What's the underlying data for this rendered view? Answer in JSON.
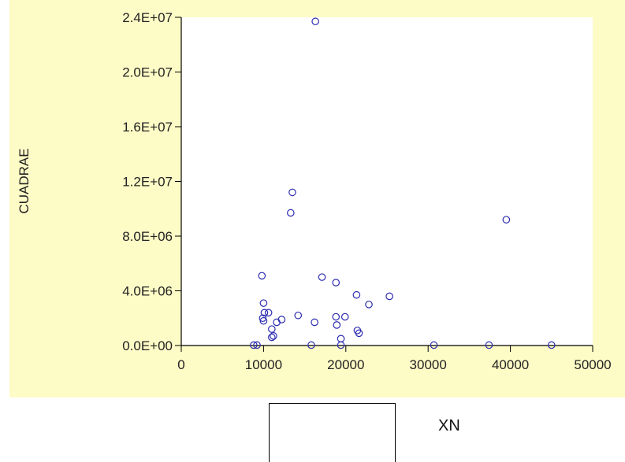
{
  "chart_data": {
    "type": "scatter",
    "xlabel": "",
    "ylabel": "CUADRAE",
    "xlim": [
      0,
      50000
    ],
    "ylim": [
      0,
      24000000
    ],
    "x_ticks": [
      "0",
      "10000",
      "20000",
      "30000",
      "40000",
      "50000"
    ],
    "y_ticks": [
      "0.0E+00",
      "4.0E+06",
      "8.0E+06",
      "1.2E+07",
      "1.6E+07",
      "2.0E+07",
      "2.4E+07"
    ],
    "grid": false,
    "marker_color": "#2b2bb0",
    "points": [
      {
        "x": 16300,
        "y": 23700000
      },
      {
        "x": 13500,
        "y": 11200000
      },
      {
        "x": 13300,
        "y": 9700000
      },
      {
        "x": 39500,
        "y": 9200000
      },
      {
        "x": 9800,
        "y": 5100000
      },
      {
        "x": 17100,
        "y": 5000000
      },
      {
        "x": 18800,
        "y": 4600000
      },
      {
        "x": 21300,
        "y": 3700000
      },
      {
        "x": 25300,
        "y": 3600000
      },
      {
        "x": 10000,
        "y": 3100000
      },
      {
        "x": 22800,
        "y": 3000000
      },
      {
        "x": 10100,
        "y": 2400000
      },
      {
        "x": 10600,
        "y": 2400000
      },
      {
        "x": 14200,
        "y": 2200000
      },
      {
        "x": 18800,
        "y": 2100000
      },
      {
        "x": 19900,
        "y": 2100000
      },
      {
        "x": 9900,
        "y": 2000000
      },
      {
        "x": 12200,
        "y": 1900000
      },
      {
        "x": 10000,
        "y": 1800000
      },
      {
        "x": 11600,
        "y": 1700000
      },
      {
        "x": 16200,
        "y": 1700000
      },
      {
        "x": 18900,
        "y": 1500000
      },
      {
        "x": 11000,
        "y": 1200000
      },
      {
        "x": 21400,
        "y": 1100000
      },
      {
        "x": 21600,
        "y": 900000
      },
      {
        "x": 11200,
        "y": 700000
      },
      {
        "x": 11000,
        "y": 600000
      },
      {
        "x": 19400,
        "y": 500000
      },
      {
        "x": 8800,
        "y": 30000
      },
      {
        "x": 9200,
        "y": 30000
      },
      {
        "x": 15800,
        "y": 30000
      },
      {
        "x": 19400,
        "y": 30000
      },
      {
        "x": 30700,
        "y": 30000
      },
      {
        "x": 37400,
        "y": 30000
      },
      {
        "x": 45000,
        "y": 30000
      }
    ]
  },
  "legend": {
    "label": "XN"
  }
}
